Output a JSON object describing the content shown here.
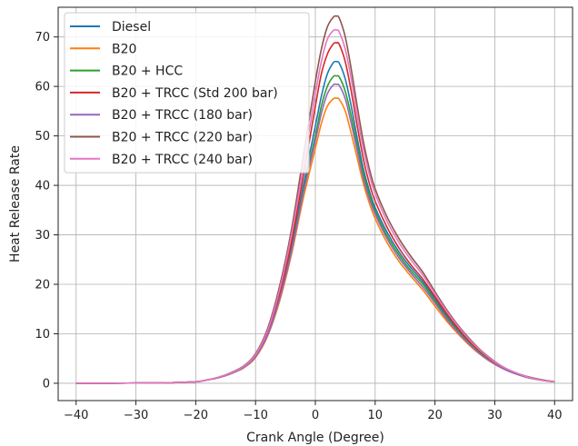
{
  "chart_data": {
    "type": "line",
    "title": "",
    "xlabel": "Crank Angle (Degree)",
    "ylabel": "Heat Release Rate",
    "xlim": [
      -43,
      43
    ],
    "ylim": [
      -3.5,
      76
    ],
    "xticks": [
      -40,
      -30,
      -20,
      -10,
      0,
      10,
      20,
      30,
      40
    ],
    "yticks": [
      0,
      10,
      20,
      30,
      40,
      50,
      60,
      70
    ],
    "grid": true,
    "legend_position": "top-left",
    "x": [
      -40,
      -35,
      -30,
      -25,
      -20,
      -18,
      -16,
      -14,
      -12,
      -10,
      -8,
      -6,
      -4,
      -2,
      0,
      1,
      2,
      3,
      3.5,
      4,
      5,
      6,
      7,
      8,
      9,
      10,
      12,
      14,
      16,
      18,
      20,
      22,
      24,
      26,
      28,
      30,
      32,
      34,
      36,
      38,
      40
    ],
    "series": [
      {
        "name": "Diesel",
        "color": "#1f77b4",
        "values": [
          0,
          0,
          0.05,
          0.1,
          0.3,
          0.7,
          1.2,
          2.0,
          3.2,
          5.5,
          10,
          17.5,
          27.5,
          40,
          52,
          58,
          62.5,
          64.8,
          65,
          64.7,
          61.5,
          56,
          49.5,
          43.5,
          39,
          35.5,
          30.5,
          26.5,
          23.3,
          20.5,
          17.1,
          13.6,
          10.6,
          8.0,
          5.8,
          4.0,
          2.7,
          1.8,
          1.1,
          0.6,
          0.3
        ]
      },
      {
        "name": "B20",
        "color": "#ff7f0e",
        "values": [
          0,
          0,
          0.05,
          0.1,
          0.3,
          0.7,
          1.2,
          2.0,
          3.1,
          5.2,
          9.5,
          16.5,
          26,
          37.5,
          47.5,
          52.5,
          56,
          57.5,
          57.6,
          57.4,
          55,
          50.5,
          45.5,
          40.5,
          36.5,
          33.3,
          28.4,
          24.6,
          21.6,
          18.8,
          15.6,
          12.5,
          9.8,
          7.4,
          5.4,
          3.8,
          2.6,
          1.7,
          1.0,
          0.6,
          0.3
        ]
      },
      {
        "name": "B20 + HCC",
        "color": "#2ca02c",
        "values": [
          0,
          0,
          0.05,
          0.1,
          0.3,
          0.7,
          1.2,
          2.0,
          3.2,
          5.4,
          9.8,
          17,
          27,
          39,
          50,
          56,
          60,
          62,
          62.1,
          61.9,
          59,
          54,
          48,
          42.5,
          38.2,
          34.8,
          29.8,
          25.9,
          22.7,
          20,
          16.6,
          13.3,
          10.3,
          7.8,
          5.7,
          4.0,
          2.7,
          1.8,
          1.1,
          0.6,
          0.3
        ]
      },
      {
        "name": "B20 + TRCC (Std 200 bar)",
        "color": "#d62728",
        "values": [
          0,
          0,
          0.05,
          0.1,
          0.3,
          0.7,
          1.2,
          2.1,
          3.3,
          5.6,
          10.3,
          18,
          28.5,
          42,
          56,
          62.5,
          66.5,
          68.6,
          68.8,
          68.5,
          65,
          59,
          52,
          45.5,
          40.5,
          36.8,
          31.5,
          27.3,
          23.9,
          21,
          17.5,
          14,
          10.9,
          8.2,
          6.0,
          4.2,
          2.8,
          1.8,
          1.1,
          0.6,
          0.3
        ]
      },
      {
        "name": "B20 + TRCC (180 bar)",
        "color": "#9467bd",
        "values": [
          0,
          0,
          0.05,
          0.1,
          0.3,
          0.7,
          1.2,
          2.0,
          3.2,
          5.4,
          9.7,
          17,
          26.5,
          38.5,
          49,
          54.5,
          58.5,
          60.3,
          60.4,
          60.2,
          57.5,
          52.5,
          47,
          41.5,
          37.4,
          34.2,
          29.2,
          25.3,
          22.2,
          19.4,
          16.2,
          12.9,
          10.1,
          7.6,
          5.5,
          3.9,
          2.6,
          1.7,
          1.0,
          0.6,
          0.3
        ]
      },
      {
        "name": "B20 + TRCC (220 bar)",
        "color": "#8c564b",
        "values": [
          0,
          0,
          0.05,
          0.1,
          0.3,
          0.7,
          1.3,
          2.2,
          3.5,
          6.0,
          11,
          19.5,
          31,
          46,
          61,
          67.5,
          72,
          74,
          74.2,
          73.8,
          70,
          63.5,
          56,
          49,
          43.5,
          39.3,
          33.6,
          29.2,
          25.6,
          22.4,
          18.5,
          14.8,
          11.5,
          8.7,
          6.3,
          4.4,
          2.9,
          1.9,
          1.2,
          0.7,
          0.3
        ]
      },
      {
        "name": "B20 + TRCC (240 bar)",
        "color": "#e377c2",
        "values": [
          0,
          0,
          0.05,
          0.1,
          0.3,
          0.7,
          1.3,
          2.1,
          3.4,
          5.8,
          10.6,
          18.8,
          30,
          44,
          58.5,
          65,
          69.5,
          71.3,
          71.4,
          71,
          67.5,
          61.5,
          54,
          47.5,
          42.3,
          38.3,
          32.7,
          28.4,
          24.9,
          21.8,
          18.1,
          14.5,
          11.3,
          8.5,
          6.2,
          4.3,
          2.9,
          1.9,
          1.1,
          0.6,
          0.3
        ]
      }
    ]
  }
}
